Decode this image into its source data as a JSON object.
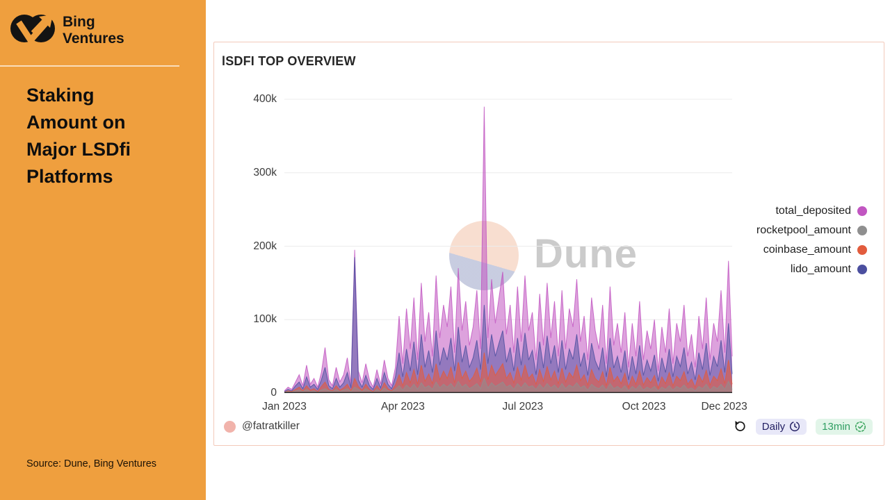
{
  "sidebar": {
    "logo_text": "Bing\nVentures",
    "logo_color": "#131313",
    "accent_color": "#EF9F3E",
    "title": "Staking\nAmount on\nMajor LSDfi\nPlatforms",
    "source": "Source: Dune, Bing Ventures"
  },
  "card": {
    "title": "lSDFI TOP OVERVIEW",
    "border_color": "#F3C9BA",
    "author": "@fatratkiller",
    "author_avatar_color": "#F1B3AB",
    "refresh_icon": "rotate-ccw-icon",
    "frequency_badge": {
      "label": "Daily",
      "icon": "clock-icon",
      "bg": "#E8E8F8",
      "fg": "#232063"
    },
    "age_badge": {
      "label": "13min",
      "icon": "badge-check-icon",
      "bg": "#E2F5E9",
      "fg": "#2f9e62"
    }
  },
  "watermark": {
    "text": "Dune",
    "circle_top_color": "#F8DCCE",
    "circle_bottom_color": "#C5CADF",
    "text_color": "#cbcbcb"
  },
  "chart_data": {
    "type": "area",
    "title": "lSDFI TOP OVERVIEW",
    "xlabel": "",
    "ylabel": "",
    "x_range": "Jan 2023 - mid Dec 2023 (daily)",
    "x_domain_days": [
      0,
      340
    ],
    "ylim": [
      0,
      400
    ],
    "values_unit": "thousands (k)",
    "grid": "horizontal",
    "grid_color": "#ECECEC",
    "axis_line_color": "#2d2d2d",
    "legend_position": "right",
    "yticks": [
      {
        "label": "0",
        "value": 0
      },
      {
        "label": "100k",
        "value": 100
      },
      {
        "label": "200k",
        "value": 200
      },
      {
        "label": "300k",
        "value": 300
      },
      {
        "label": "400k",
        "value": 400
      }
    ],
    "xticks": [
      {
        "label": "Jan 2023",
        "day": 0
      },
      {
        "label": "Apr 2023",
        "day": 90
      },
      {
        "label": "Jul 2023",
        "day": 181
      },
      {
        "label": "Oct 2023",
        "day": 273
      },
      {
        "label": "Dec 2023",
        "day": 334
      }
    ],
    "legend": [
      {
        "label": "total_deposited",
        "color": "#C156C1"
      },
      {
        "label": "rocketpool_amount",
        "color": "#8F8F8F"
      },
      {
        "label": "coinbase_amount",
        "color": "#E25C3D"
      },
      {
        "label": "lido_amount",
        "color": "#4B4F9F"
      }
    ],
    "series": [
      {
        "name": "total_deposited",
        "color": "#C156C1",
        "fill_opacity": 0.55,
        "values": [
          3,
          8,
          5,
          15,
          25,
          10,
          38,
          12,
          20,
          8,
          28,
          62,
          18,
          10,
          35,
          15,
          25,
          48,
          12,
          195,
          30,
          14,
          40,
          18,
          8,
          32,
          12,
          45,
          20,
          10,
          35,
          105,
          40,
          115,
          60,
          130,
          45,
          150,
          70,
          110,
          50,
          160,
          75,
          120,
          90,
          145,
          55,
          170,
          85,
          125,
          65,
          90,
          140,
          60,
          390,
          75,
          155,
          95,
          130,
          165,
          80,
          120,
          55,
          145,
          70,
          160,
          85,
          110,
          45,
          135,
          65,
          150,
          75,
          125,
          50,
          140,
          60,
          115,
          90,
          155,
          70,
          105,
          45,
          130,
          85,
          60,
          120,
          40,
          145,
          65,
          95,
          55,
          110,
          35,
          95,
          50,
          125,
          45,
          85,
          60,
          100,
          30,
          90,
          55,
          115,
          40,
          95,
          70,
          120,
          50,
          80,
          35,
          105,
          60,
          130,
          45,
          95,
          70,
          140,
          55,
          180,
          50
        ]
      },
      {
        "name": "lido_amount",
        "color": "#4B4F9F",
        "fill_opacity": 0.5,
        "values": [
          2,
          5,
          3,
          10,
          15,
          6,
          22,
          8,
          12,
          5,
          18,
          35,
          10,
          6,
          20,
          8,
          14,
          28,
          7,
          185,
          18,
          8,
          24,
          10,
          5,
          20,
          7,
          28,
          12,
          6,
          22,
          55,
          22,
          60,
          30,
          70,
          25,
          80,
          35,
          58,
          28,
          85,
          38,
          62,
          45,
          75,
          30,
          90,
          42,
          65,
          35,
          48,
          72,
          32,
          120,
          40,
          80,
          50,
          68,
          85,
          42,
          62,
          30,
          75,
          38,
          82,
          45,
          58,
          25,
          70,
          34,
          78,
          40,
          65,
          28,
          72,
          32,
          60,
          46,
          80,
          36,
          55,
          24,
          68,
          44,
          32,
          62,
          22,
          75,
          34,
          50,
          28,
          58,
          18,
          50,
          26,
          65,
          24,
          45,
          30,
          52,
          16,
          48,
          28,
          60,
          22,
          50,
          36,
          62,
          26,
          42,
          18,
          55,
          32,
          68,
          24,
          50,
          36,
          72,
          28,
          95,
          26
        ]
      },
      {
        "name": "coinbase_amount",
        "color": "#E25C3D",
        "fill_opacity": 0.6,
        "values": [
          1,
          3,
          2,
          5,
          8,
          3,
          10,
          4,
          6,
          2,
          9,
          15,
          5,
          3,
          10,
          4,
          7,
          12,
          3,
          20,
          9,
          4,
          12,
          5,
          2,
          10,
          3,
          14,
          6,
          3,
          11,
          25,
          10,
          28,
          14,
          32,
          12,
          38,
          16,
          26,
          13,
          40,
          18,
          30,
          20,
          35,
          14,
          42,
          20,
          30,
          16,
          22,
          34,
          15,
          55,
          18,
          38,
          24,
          32,
          40,
          20,
          28,
          14,
          35,
          18,
          38,
          20,
          26,
          12,
          32,
          16,
          36,
          18,
          30,
          13,
          34,
          15,
          28,
          21,
          38,
          17,
          25,
          11,
          32,
          20,
          15,
          29,
          10,
          35,
          16,
          23,
          13,
          27,
          8,
          23,
          12,
          30,
          11,
          21,
          14,
          24,
          7,
          22,
          13,
          28,
          10,
          23,
          17,
          29,
          12,
          19,
          8,
          25,
          15,
          31,
          11,
          23,
          17,
          33,
          13,
          45,
          12
        ]
      },
      {
        "name": "rocketpool_amount",
        "color": "#8F8F8F",
        "fill_opacity": 0.5,
        "values": [
          1,
          2,
          1,
          3,
          4,
          2,
          5,
          2,
          3,
          1,
          4,
          6,
          3,
          2,
          5,
          2,
          4,
          6,
          2,
          8,
          5,
          2,
          6,
          3,
          1,
          5,
          2,
          7,
          3,
          2,
          5,
          10,
          4,
          11,
          6,
          12,
          5,
          14,
          7,
          10,
          5,
          15,
          7,
          12,
          8,
          13,
          6,
          16,
          8,
          12,
          6,
          9,
          13,
          6,
          20,
          7,
          14,
          9,
          12,
          15,
          8,
          11,
          5,
          13,
          7,
          14,
          8,
          10,
          5,
          12,
          6,
          13,
          7,
          11,
          5,
          13,
          6,
          11,
          8,
          14,
          7,
          10,
          4,
          12,
          8,
          6,
          11,
          4,
          13,
          6,
          9,
          5,
          10,
          3,
          9,
          5,
          11,
          4,
          8,
          5,
          9,
          3,
          8,
          5,
          10,
          4,
          9,
          6,
          11,
          5,
          7,
          3,
          9,
          6,
          12,
          4,
          9,
          6,
          12,
          5,
          16,
          5
        ]
      }
    ]
  }
}
